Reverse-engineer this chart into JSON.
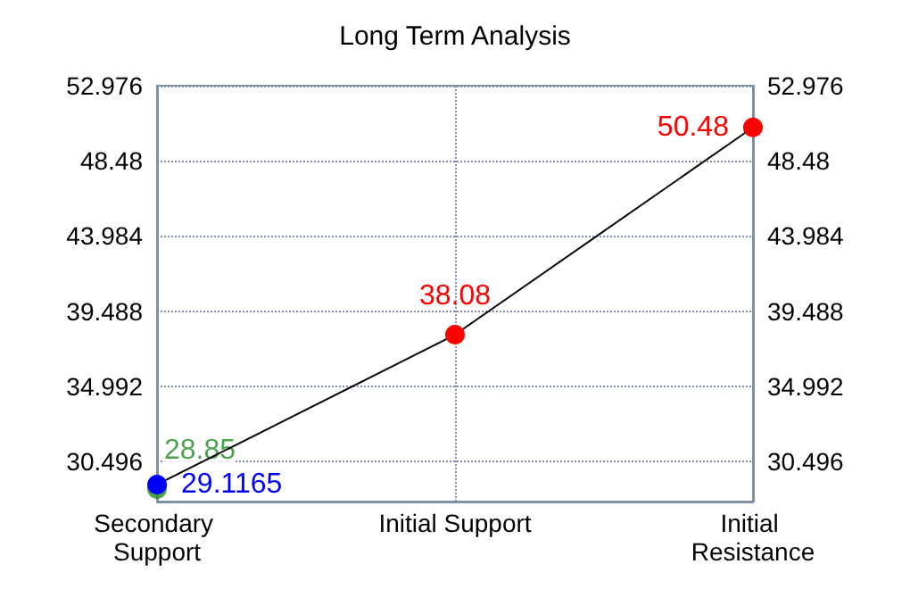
{
  "chart_data": {
    "type": "line",
    "title": "Long Term Analysis",
    "categories": [
      "Secondary Support",
      "Initial Support",
      "Initial Resistance"
    ],
    "series": [
      {
        "color": "#000000",
        "colors": [
          "#0000ff",
          "#ff0000",
          "#ff0000"
        ],
        "values": [
          29.1165,
          38.08,
          50.48
        ]
      },
      {
        "type": "scatter",
        "color": "#228b22",
        "x": [
          "Secondary Support"
        ],
        "values": [
          28.85
        ]
      }
    ],
    "ylim": [
      28.1,
      52.976
    ],
    "yticks": [
      30.496,
      34.992,
      39.488,
      43.984,
      48.48,
      52.976
    ],
    "y2lim": [
      28.1,
      52.976
    ],
    "y2ticks": [
      30.496,
      34.992,
      39.488,
      43.984,
      48.48,
      52.976
    ],
    "grid": true,
    "marker": "circle",
    "data_labels": true
  }
}
